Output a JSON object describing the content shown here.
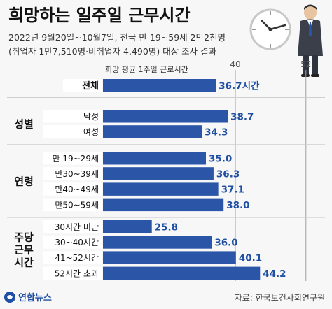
{
  "header": {
    "title": "희망하는 일주일 근무시간",
    "subtitle1": "2022년 9월20일~10월7일, 전국 만 19~59세 2만2천명",
    "subtitle2": "(취업자 1만7,510명·비취업자 4,490명) 대상 조사 결과"
  },
  "chart_data": {
    "type": "bar",
    "orientation": "horizontal",
    "series_label": "희망 평균 1주일 근로시간",
    "unit_suffix": "시간",
    "xlim": [
      0,
      52
    ],
    "reference_lines": [
      40,
      52
    ],
    "groups": [
      {
        "name": "",
        "label_lines": [],
        "rows": [
          {
            "label": "전체",
            "value": 36.7,
            "display": "36.7시간"
          }
        ]
      },
      {
        "name": "성별",
        "label_lines": [
          "성별"
        ],
        "rows": [
          {
            "label": "남성",
            "value": 38.7,
            "display": "38.7"
          },
          {
            "label": "여성",
            "value": 34.3,
            "display": "34.3"
          }
        ]
      },
      {
        "name": "연령",
        "label_lines": [
          "연령"
        ],
        "rows": [
          {
            "label": "만 19~29세",
            "value": 35.0,
            "display": "35.0"
          },
          {
            "label": "만30~39세",
            "value": 36.3,
            "display": "36.3"
          },
          {
            "label": "만40~49세",
            "value": 37.1,
            "display": "37.1"
          },
          {
            "label": "만50~59세",
            "value": 38.0,
            "display": "38.0"
          }
        ]
      },
      {
        "name": "주당 근무 시간",
        "label_lines": [
          "주당",
          "근무",
          "시간"
        ],
        "rows": [
          {
            "label": "30시간 미만",
            "value": 25.8,
            "display": "25.8"
          },
          {
            "label": "30~40시간",
            "value": 36.0,
            "display": "36.0"
          },
          {
            "label": "41~52시간",
            "value": 40.1,
            "display": "40.1"
          },
          {
            "label": "52시간 초과",
            "value": 44.2,
            "display": "44.2"
          }
        ]
      }
    ]
  },
  "footer": {
    "logo_text": "연합뉴스",
    "source": "자료: 한국보건사회연구원"
  },
  "colors": {
    "bar": "#2b56a8",
    "total_bar": "#2b56a8",
    "value_text": "#1f4fa3",
    "label_box": "#ffffff",
    "background": "#f7f7f7",
    "ref_line": "#9aa0a6"
  },
  "icons": [
    "clock-icon",
    "businessman-icon",
    "yonhap-logo-icon"
  ]
}
